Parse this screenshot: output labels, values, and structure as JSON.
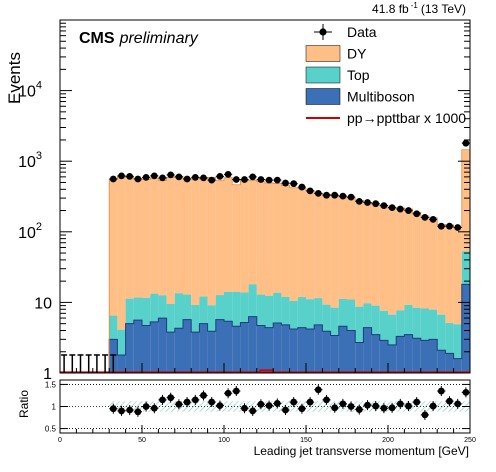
{
  "chart_data": {
    "type": "bar",
    "subtype": "stacked-histogram-with-ratio",
    "lumi_label": "41.8 fb",
    "lumi_exponent": "-1",
    "lumi_energy": "(13 TeV)",
    "experiment": "CMS",
    "status": "preliminary",
    "xlabel": "Leading jet transverse momentum [GeV]",
    "ylabel": "Events",
    "ratio_ylabel": "Ratio",
    "xlim": [
      0,
      250
    ],
    "ylim": [
      1,
      100000
    ],
    "y_scale": "log",
    "ratio_ylim": [
      0.4,
      1.6
    ],
    "bin_width": 5,
    "x_ticks": [
      "0",
      "50",
      "100",
      "150",
      "200",
      "250"
    ],
    "y_ticks": [
      {
        "value": 1,
        "base": "1",
        "exp": ""
      },
      {
        "value": 10,
        "base": "10",
        "exp": ""
      },
      {
        "value": 100,
        "base": "10",
        "exp": "2"
      },
      {
        "value": 1000,
        "base": "10",
        "exp": "3"
      },
      {
        "value": 10000,
        "base": "10",
        "exp": "4"
      }
    ],
    "ratio_ticks": [
      "0.5",
      "1",
      "1.5"
    ],
    "legend_placement": "top-right",
    "legend": [
      {
        "label": "Data",
        "kind": "marker"
      },
      {
        "label": "DY",
        "kind": "box",
        "color": "#ffbf87"
      },
      {
        "label": "Top",
        "kind": "box",
        "color": "#57d1c9"
      },
      {
        "label": "Multiboson",
        "kind": "box",
        "color": "#3b6fb6"
      },
      {
        "label": "pp→ppttbar x 1000",
        "kind": "line",
        "color": "#cc0000"
      }
    ],
    "colors": {
      "dy": "#ffbf87",
      "top": "#57d1c9",
      "multiboson": "#3b6fb6",
      "signal": "#cc0000",
      "data": "#000000",
      "ratio_band": "#7fc9c4"
    },
    "bins_low_edge": [
      30,
      35,
      40,
      45,
      50,
      55,
      60,
      65,
      70,
      75,
      80,
      85,
      90,
      95,
      100,
      105,
      110,
      115,
      120,
      125,
      130,
      135,
      140,
      145,
      150,
      155,
      160,
      165,
      170,
      175,
      180,
      185,
      190,
      195,
      200,
      205,
      210,
      215,
      220,
      225,
      230,
      235,
      240,
      245
    ],
    "series": [
      {
        "name": "Multiboson",
        "values": [
          3,
          1.8,
          5,
          5.6,
          4.7,
          5.3,
          6,
          3.8,
          4.3,
          5.7,
          3.8,
          5,
          3.9,
          5.7,
          5.4,
          4.6,
          5.2,
          6.3,
          4.7,
          4.4,
          5.1,
          4.8,
          4.2,
          4.4,
          4.2,
          4.8,
          3.9,
          3.4,
          4.6,
          4,
          2.7,
          4.4,
          3.5,
          2.9,
          2.5,
          3.3,
          3.5,
          3.1,
          2.9,
          3,
          2.1,
          1.9,
          1.6,
          18
        ]
      },
      {
        "name": "Top",
        "values": [
          3.5,
          2.3,
          6.3,
          6.1,
          6.9,
          8,
          6.6,
          5.7,
          9.2,
          7.2,
          5.4,
          7.1,
          5.2,
          7,
          8.7,
          9.5,
          8.6,
          11.8,
          8.2,
          8,
          8.6,
          7.2,
          6.3,
          7.5,
          6.9,
          6.7,
          5.4,
          5,
          6.6,
          7,
          6,
          5.3,
          5.5,
          4.7,
          4.2,
          4.4,
          5.7,
          5.3,
          5.3,
          4.9,
          4.6,
          3.2,
          3.3,
          35
        ]
      },
      {
        "name": "DY",
        "values": [
          550,
          600,
          580,
          560,
          540,
          560,
          520,
          580,
          600,
          560,
          550,
          560,
          580,
          520,
          570,
          450,
          520,
          520,
          500,
          480,
          470,
          440,
          410,
          400,
          370,
          340,
          330,
          320,
          300,
          290,
          270,
          250,
          240,
          230,
          210,
          210,
          200,
          180,
          160,
          150,
          120,
          120,
          110,
          1400
        ]
      },
      {
        "name": "Data",
        "values": [
          560,
          620,
          610,
          560,
          590,
          620,
          580,
          640,
          600,
          560,
          590,
          580,
          540,
          610,
          650,
          550,
          550,
          600,
          550,
          540,
          540,
          490,
          480,
          430,
          380,
          350,
          330,
          330,
          320,
          310,
          270,
          260,
          250,
          235,
          220,
          210,
          200,
          180,
          160,
          150,
          120,
          120,
          115,
          1800
        ]
      }
    ],
    "data_low_bins": [
      0,
      0,
      0,
      0,
      0,
      0,
      0
    ],
    "ratio": [
      0.95,
      0.9,
      0.92,
      0.88,
      1,
      0.96,
      1.15,
      1.2,
      1.05,
      1.1,
      1.15,
      1.25,
      1.1,
      1.02,
      1.3,
      1.35,
      0.96,
      0.9,
      1.05,
      1.02,
      1.07,
      0.92,
      1.1,
      0.95,
      1.1,
      1.38,
      1.15,
      0.97,
      1.06,
      1,
      0.93,
      1.03,
      1.01,
      0.96,
      0.97,
      1.06,
      1.01,
      1.1,
      0.81,
      1.01,
      1.35,
      1.12,
      1.06,
      1.32
    ],
    "signal_values": [
      1.1,
      1.05
    ]
  }
}
